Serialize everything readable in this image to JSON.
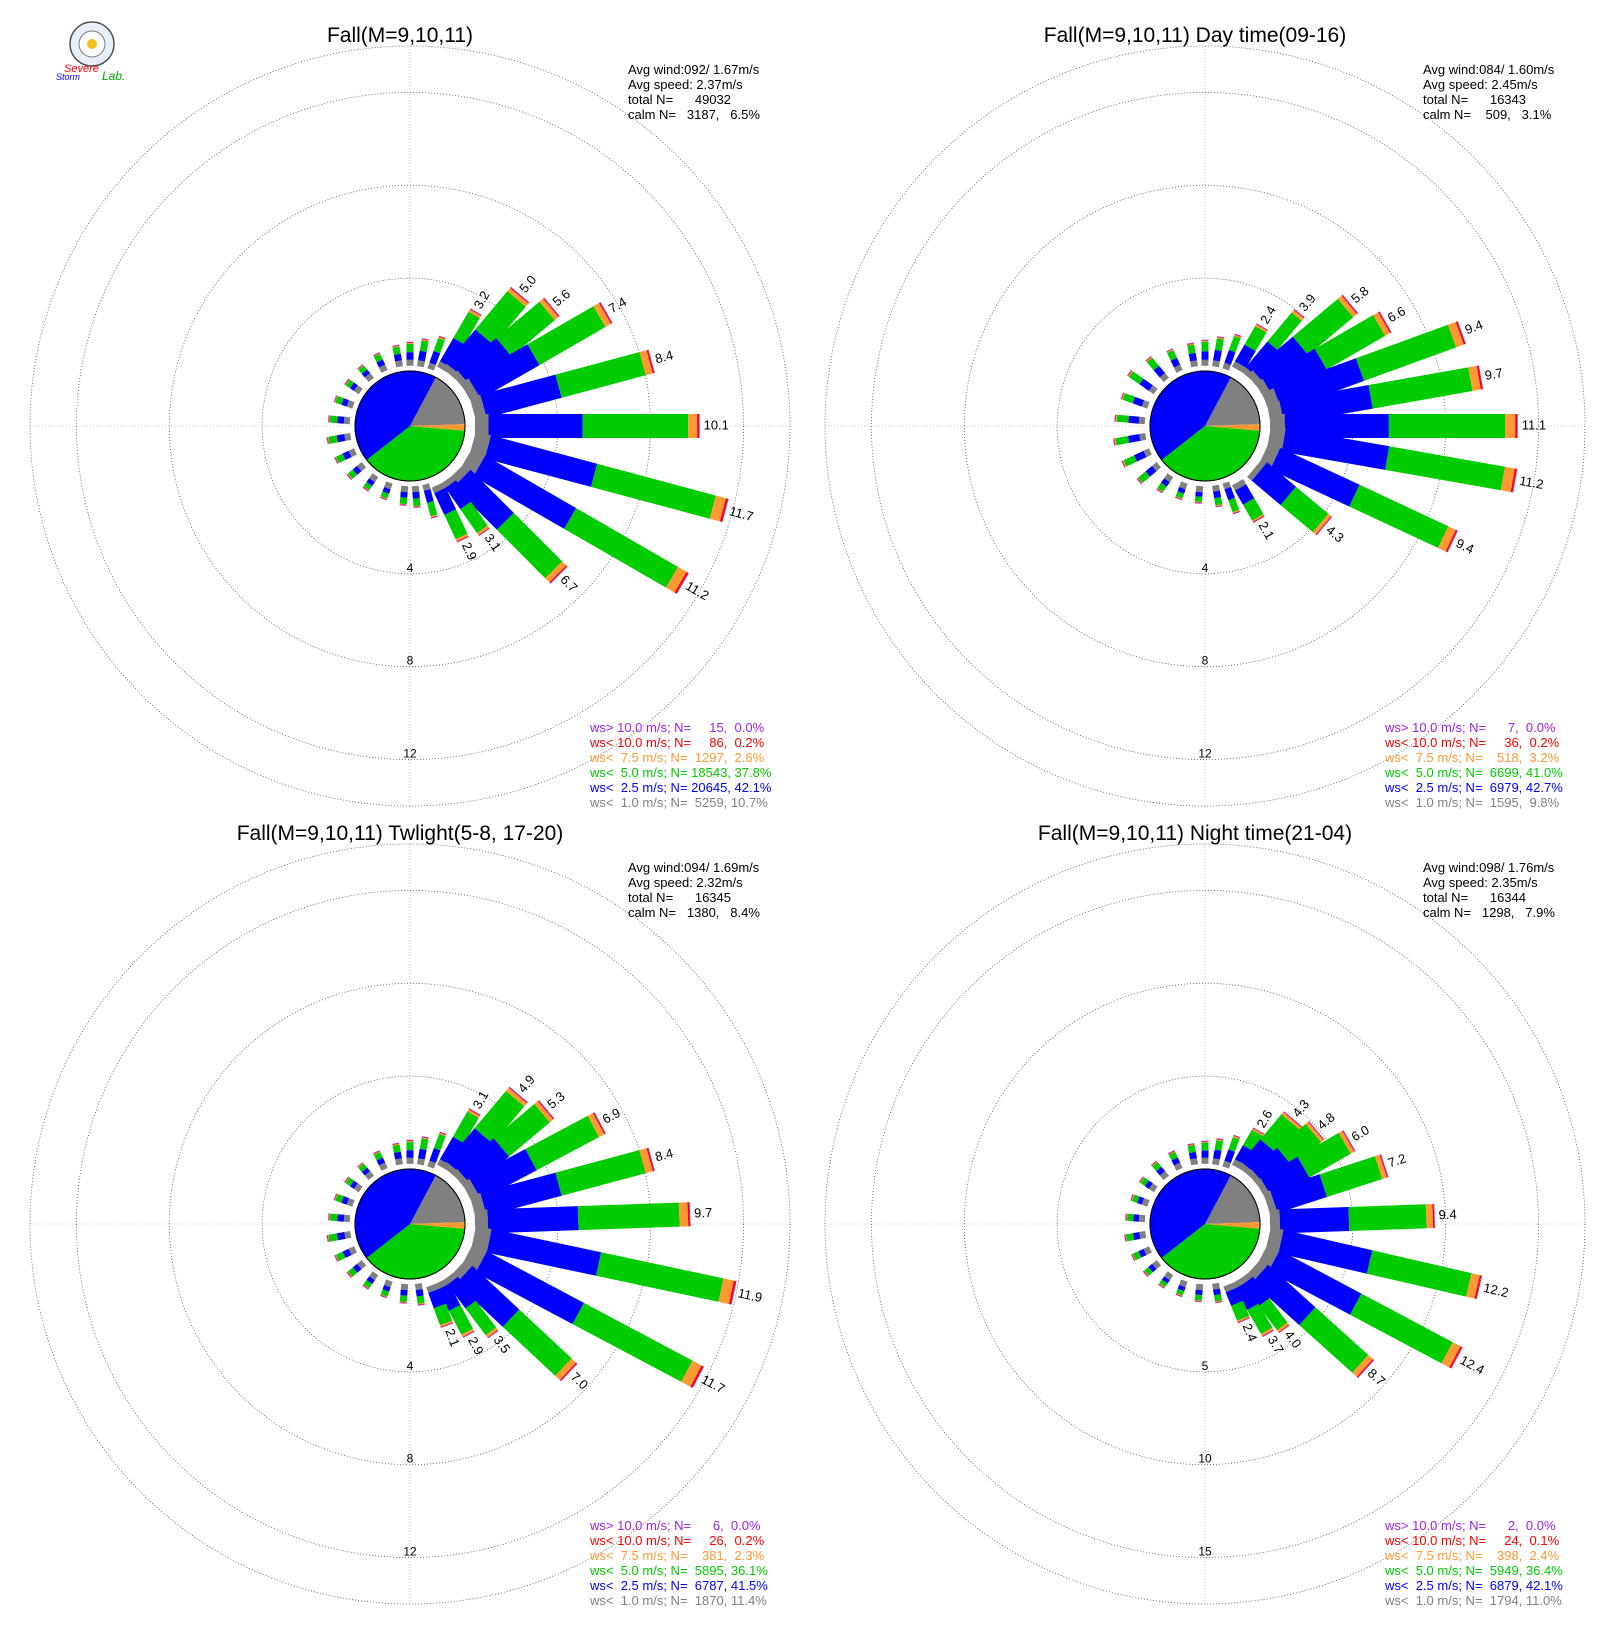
{
  "logo": {
    "line1": "Severe",
    "line2": "Storm",
    "line3": "Lab."
  },
  "colors": {
    "gt10": "#a020f0",
    "lt10": "#ff0000",
    "lt7_5": "#ff9933",
    "lt5": "#00cc00",
    "lt2_5": "#0000ff",
    "lt1": "#808080",
    "text": "#000000",
    "grid": "#888888"
  },
  "chart_data": [
    {
      "type": "windrose",
      "title": "Fall(M=9,10,11)",
      "stats": [
        "Avg wind:092/ 1.67m/s",
        "Avg speed: 2.37m/s",
        "total N=      49032",
        "calm N=   3187,   6.5%"
      ],
      "ring_labels": [
        "4",
        "8",
        "12"
      ],
      "ring_values": [
        4,
        8,
        12
      ],
      "rmax": 14,
      "calm_pct": 6.5,
      "calm_split": [
        0.78,
        0.22
      ],
      "legend": [
        {
          "key": "gt10",
          "text": "ws> 10.0 m/s; N=     15,  0.0%"
        },
        {
          "key": "lt10",
          "text": "ws< 10.0 m/s; N=     86,  0.2%"
        },
        {
          "key": "lt7_5",
          "text": "ws<  7.5 m/s; N=  1297,  2.6%"
        },
        {
          "key": "lt5",
          "text": "ws<  5.0 m/s; N= 18543, 37.8%"
        },
        {
          "key": "lt2_5",
          "text": "ws<  2.5 m/s; N= 20645, 42.1%"
        },
        {
          "key": "lt1",
          "text": "ws<  1.0 m/s; N=  5259, 10.7%"
        }
      ],
      "sectors": [
        {
          "dir": 10,
          "total": 1.2
        },
        {
          "dir": 20,
          "total": 1.5
        },
        {
          "dir": 30,
          "total": 3.2,
          "label": "3.2"
        },
        {
          "dir": 40,
          "total": 5.0,
          "label": "5.0"
        },
        {
          "dir": 50,
          "total": 5.6,
          "label": "5.6"
        },
        {
          "dir": 60,
          "total": 7.4,
          "label": "7.4"
        },
        {
          "dir": 75,
          "total": 8.4,
          "label": "8.4"
        },
        {
          "dir": 90,
          "total": 10.1,
          "label": "10.1"
        },
        {
          "dir": 105,
          "total": 11.7,
          "label": "11.7"
        },
        {
          "dir": 120,
          "total": 11.2,
          "label": "11.2"
        },
        {
          "dir": 135,
          "total": 6.7,
          "label": "6.7"
        },
        {
          "dir": 145,
          "total": 3.1,
          "label": "3.1"
        },
        {
          "dir": 155,
          "total": 2.9,
          "label": "2.9"
        },
        {
          "dir": 165,
          "total": 1.5
        },
        {
          "dir": 175,
          "total": 0.9
        },
        {
          "dir": 185,
          "total": 0.8
        },
        {
          "dir": 200,
          "total": 0.7
        },
        {
          "dir": 215,
          "total": 0.7
        },
        {
          "dir": 230,
          "total": 0.8
        },
        {
          "dir": 245,
          "total": 0.9
        },
        {
          "dir": 260,
          "total": 1.0
        },
        {
          "dir": 275,
          "total": 0.9
        },
        {
          "dir": 290,
          "total": 0.8
        },
        {
          "dir": 305,
          "total": 0.7
        },
        {
          "dir": 320,
          "total": 0.7
        },
        {
          "dir": 335,
          "total": 0.8
        },
        {
          "dir": 350,
          "total": 0.9
        },
        {
          "dir": 0,
          "total": 1.0
        }
      ]
    },
    {
      "type": "windrose",
      "title": "Fall(M=9,10,11) Day time(09-16)",
      "stats": [
        "Avg wind:084/ 1.60m/s",
        "Avg speed: 2.45m/s",
        "total N=      16343",
        "calm N=    509,   3.1%"
      ],
      "ring_labels": [
        "4",
        "8",
        "12"
      ],
      "ring_values": [
        4,
        8,
        12
      ],
      "rmax": 14,
      "calm_pct": 3.1,
      "calm_split": [
        0.72,
        0.28
      ],
      "legend": [
        {
          "key": "gt10",
          "text": "ws> 10.0 m/s; N=      7,  0.0%"
        },
        {
          "key": "lt10",
          "text": "ws< 10.0 m/s; N=     36,  0.2%"
        },
        {
          "key": "lt7_5",
          "text": "ws<  7.5 m/s; N=    518,  3.2%"
        },
        {
          "key": "lt5",
          "text": "ws<  5.0 m/s; N=  6699, 41.0%"
        },
        {
          "key": "lt2_5",
          "text": "ws<  2.5 m/s; N=  6979, 42.7%"
        },
        {
          "key": "lt1",
          "text": "ws<  1.0 m/s; N=  1595,  9.8%"
        }
      ],
      "sectors": [
        {
          "dir": 10,
          "total": 1.3
        },
        {
          "dir": 20,
          "total": 1.6
        },
        {
          "dir": 30,
          "total": 2.4,
          "label": "2.4"
        },
        {
          "dir": 40,
          "total": 3.9,
          "label": "3.9"
        },
        {
          "dir": 50,
          "total": 5.8,
          "label": "5.8"
        },
        {
          "dir": 60,
          "total": 6.6,
          "label": "6.6"
        },
        {
          "dir": 70,
          "total": 9.4,
          "label": "9.4"
        },
        {
          "dir": 80,
          "total": 9.7,
          "label": "9.7"
        },
        {
          "dir": 90,
          "total": 11.1,
          "label": "11.1"
        },
        {
          "dir": 100,
          "total": 11.2,
          "label": "11.2"
        },
        {
          "dir": 115,
          "total": 9.4,
          "label": "9.4"
        },
        {
          "dir": 130,
          "total": 4.3,
          "label": "4.3"
        },
        {
          "dir": 150,
          "total": 2.1,
          "label": "2.1"
        },
        {
          "dir": 160,
          "total": 1.4
        },
        {
          "dir": 170,
          "total": 0.9
        },
        {
          "dir": 185,
          "total": 0.7
        },
        {
          "dir": 200,
          "total": 0.7
        },
        {
          "dir": 215,
          "total": 0.8
        },
        {
          "dir": 230,
          "total": 1.1
        },
        {
          "dir": 245,
          "total": 1.3
        },
        {
          "dir": 260,
          "total": 1.4
        },
        {
          "dir": 275,
          "total": 1.3
        },
        {
          "dir": 290,
          "total": 1.2
        },
        {
          "dir": 305,
          "total": 1.4
        },
        {
          "dir": 320,
          "total": 1.2
        },
        {
          "dir": 335,
          "total": 1.0
        },
        {
          "dir": 350,
          "total": 1.0
        },
        {
          "dir": 0,
          "total": 1.1
        }
      ]
    },
    {
      "type": "windrose",
      "title": "Fall(M=9,10,11) Twlight(5-8, 17-20)",
      "stats": [
        "Avg wind:094/ 1.69m/s",
        "Avg speed: 2.32m/s",
        "total N=      16345",
        "calm N=   1380,   8.4%"
      ],
      "ring_labels": [
        "4",
        "8",
        "12"
      ],
      "ring_values": [
        4,
        8,
        12
      ],
      "rmax": 14,
      "calm_pct": 8.4,
      "calm_split": [
        0.8,
        0.2
      ],
      "legend": [
        {
          "key": "gt10",
          "text": "ws> 10.0 m/s; N=      6,  0.0%"
        },
        {
          "key": "lt10",
          "text": "ws< 10.0 m/s; N=     26,  0.2%"
        },
        {
          "key": "lt7_5",
          "text": "ws<  7.5 m/s; N=    381,  2.3%"
        },
        {
          "key": "lt5",
          "text": "ws<  5.0 m/s; N=  5895, 36.1%"
        },
        {
          "key": "lt2_5",
          "text": "ws<  2.5 m/s; N=  6787, 41.5%"
        },
        {
          "key": "lt1",
          "text": "ws<  1.0 m/s; N=  1870, 11.4%"
        }
      ],
      "sectors": [
        {
          "dir": 10,
          "total": 1.2
        },
        {
          "dir": 20,
          "total": 1.6
        },
        {
          "dir": 30,
          "total": 3.1,
          "label": "3.1"
        },
        {
          "dir": 40,
          "total": 4.9,
          "label": "4.9"
        },
        {
          "dir": 50,
          "total": 5.3,
          "label": "5.3"
        },
        {
          "dir": 62,
          "total": 6.9,
          "label": "6.9"
        },
        {
          "dir": 75,
          "total": 8.4,
          "label": "8.4"
        },
        {
          "dir": 88,
          "total": 9.7,
          "label": "9.7"
        },
        {
          "dir": 102,
          "total": 11.9,
          "label": "11.9"
        },
        {
          "dir": 118,
          "total": 11.7,
          "label": "11.7"
        },
        {
          "dir": 133,
          "total": 7.0,
          "label": "7.0"
        },
        {
          "dir": 143,
          "total": 3.5,
          "label": "3.5"
        },
        {
          "dir": 152,
          "total": 2.9,
          "label": "2.9"
        },
        {
          "dir": 160,
          "total": 2.1,
          "label": "2.1"
        },
        {
          "dir": 172,
          "total": 0.9
        },
        {
          "dir": 185,
          "total": 0.8
        },
        {
          "dir": 200,
          "total": 0.7
        },
        {
          "dir": 215,
          "total": 0.7
        },
        {
          "dir": 230,
          "total": 0.8
        },
        {
          "dir": 245,
          "total": 0.9
        },
        {
          "dir": 260,
          "total": 1.0
        },
        {
          "dir": 275,
          "total": 0.9
        },
        {
          "dir": 290,
          "total": 0.8
        },
        {
          "dir": 305,
          "total": 0.7
        },
        {
          "dir": 320,
          "total": 0.7
        },
        {
          "dir": 335,
          "total": 0.8
        },
        {
          "dir": 350,
          "total": 0.9
        },
        {
          "dir": 0,
          "total": 1.0
        }
      ]
    },
    {
      "type": "windrose",
      "title": "Fall(M=9,10,11) Night time(21-04)",
      "stats": [
        "Avg wind:098/ 1.76m/s",
        "Avg speed: 2.35m/s",
        "total N=      16344",
        "calm N=   1298,   7.9%"
      ],
      "ring_labels": [
        "5",
        "10",
        "15"
      ],
      "ring_values": [
        5,
        10,
        15
      ],
      "rmax": 17.5,
      "calm_pct": 7.9,
      "calm_split": [
        0.78,
        0.22
      ],
      "legend": [
        {
          "key": "gt10",
          "text": "ws> 10.0 m/s; N=      2,  0.0%"
        },
        {
          "key": "lt10",
          "text": "ws< 10.0 m/s; N=     24,  0.1%"
        },
        {
          "key": "lt7_5",
          "text": "ws<  7.5 m/s; N=    398,  2.4%"
        },
        {
          "key": "lt5",
          "text": "ws<  5.0 m/s; N=  5949, 36.4%"
        },
        {
          "key": "lt2_5",
          "text": "ws<  2.5 m/s; N=  6879, 42.1%"
        },
        {
          "key": "lt1",
          "text": "ws<  1.0 m/s; N=  1794, 11.0%"
        }
      ],
      "sectors": [
        {
          "dir": 10,
          "total": 1.4
        },
        {
          "dir": 20,
          "total": 1.8
        },
        {
          "dir": 30,
          "total": 2.6,
          "label": "2.6"
        },
        {
          "dir": 40,
          "total": 4.3,
          "label": "4.3"
        },
        {
          "dir": 50,
          "total": 4.8,
          "label": "4.8"
        },
        {
          "dir": 60,
          "total": 6.0,
          "label": "6.0"
        },
        {
          "dir": 72,
          "total": 7.2,
          "label": "7.2"
        },
        {
          "dir": 88,
          "total": 9.4,
          "label": "9.4"
        },
        {
          "dir": 103,
          "total": 12.2,
          "label": "12.2"
        },
        {
          "dir": 118,
          "total": 12.4,
          "label": "12.4"
        },
        {
          "dir": 132,
          "total": 8.7,
          "label": "8.7"
        },
        {
          "dir": 143,
          "total": 4.0,
          "label": "4.0"
        },
        {
          "dir": 150,
          "total": 3.7,
          "label": "3.7"
        },
        {
          "dir": 158,
          "total": 2.4,
          "label": "2.4"
        },
        {
          "dir": 170,
          "total": 1.0
        },
        {
          "dir": 185,
          "total": 0.9
        },
        {
          "dir": 200,
          "total": 0.8
        },
        {
          "dir": 215,
          "total": 0.8
        },
        {
          "dir": 230,
          "total": 0.9
        },
        {
          "dir": 245,
          "total": 1.0
        },
        {
          "dir": 260,
          "total": 1.1
        },
        {
          "dir": 275,
          "total": 1.0
        },
        {
          "dir": 290,
          "total": 0.9
        },
        {
          "dir": 305,
          "total": 0.9
        },
        {
          "dir": 320,
          "total": 1.0
        },
        {
          "dir": 335,
          "total": 1.0
        },
        {
          "dir": 350,
          "total": 1.1
        },
        {
          "dir": 0,
          "total": 1.2
        }
      ]
    }
  ]
}
